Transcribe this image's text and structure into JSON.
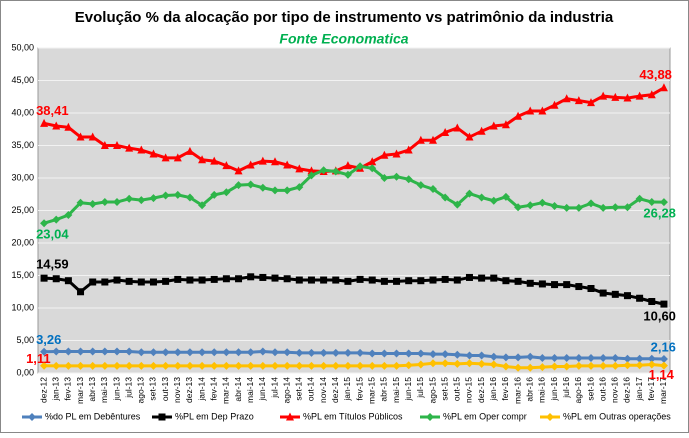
{
  "chart_data": {
    "type": "line",
    "title": "Evolução % da alocação por tipo de instrumento vs patrimônio da industria",
    "subtitle": "Fonte Economatica",
    "categories": [
      "dez-12",
      "jan-13",
      "fev-13",
      "mar-13",
      "abr-13",
      "mai-13",
      "jun-13",
      "jul-13",
      "ago-13",
      "set-13",
      "out-13",
      "nov-13",
      "dez-13",
      "jan-14",
      "fev-14",
      "mar-14",
      "abr-14",
      "mai-14",
      "jun-14",
      "jul-14",
      "ago-14",
      "set-14",
      "out-14",
      "nov-14",
      "dez-14",
      "jan-15",
      "fev-15",
      "mar-15",
      "abr-15",
      "mai-15",
      "jun-15",
      "jul-15",
      "ago-15",
      "set-15",
      "out-15",
      "nov-15",
      "dez-15",
      "jan-16",
      "fev-16",
      "mar-16",
      "abr-16",
      "mai-16",
      "jun-16",
      "jul-16",
      "ago-16",
      "set-16",
      "out-16",
      "nov-16",
      "dez-16",
      "jan-17",
      "fev-17",
      "mar-17"
    ],
    "ylim": [
      0,
      50
    ],
    "yticks": [
      {
        "value": 0,
        "label": "0,00"
      },
      {
        "value": 5,
        "label": "5,00"
      },
      {
        "value": 10,
        "label": "10,00"
      },
      {
        "value": 15,
        "label": "15,00"
      },
      {
        "value": 20,
        "label": "20,00"
      },
      {
        "value": 25,
        "label": "25,00"
      },
      {
        "value": 30,
        "label": "30,00"
      },
      {
        "value": 35,
        "label": "35,00"
      },
      {
        "value": 40,
        "label": "40,00"
      },
      {
        "value": 45,
        "label": "45,00"
      },
      {
        "value": 50,
        "label": "50,00"
      }
    ],
    "grid": true,
    "legend": "bottom",
    "series": [
      {
        "name": "%do PL em Debêntures",
        "color": "#4f81bd",
        "label_color": "#0070c0",
        "marker": "diamond",
        "values": [
          3.26,
          3.3,
          3.3,
          3.3,
          3.3,
          3.3,
          3.3,
          3.3,
          3.2,
          3.2,
          3.2,
          3.2,
          3.2,
          3.2,
          3.2,
          3.2,
          3.2,
          3.2,
          3.3,
          3.2,
          3.2,
          3.1,
          3.1,
          3.1,
          3.1,
          3.1,
          3.1,
          3.0,
          3.0,
          3.0,
          3.0,
          3.0,
          2.9,
          2.9,
          2.8,
          2.7,
          2.7,
          2.5,
          2.4,
          2.4,
          2.5,
          2.3,
          2.3,
          2.3,
          2.3,
          2.3,
          2.3,
          2.3,
          2.2,
          2.2,
          2.2,
          2.16
        ],
        "value_labels": [
          "3,26",
          null,
          null,
          null,
          null,
          null,
          null,
          null,
          null,
          null,
          null,
          null,
          null,
          null,
          null,
          null,
          null,
          null,
          null,
          null,
          null,
          null,
          null,
          null,
          null,
          null,
          null,
          null,
          null,
          null,
          null,
          null,
          null,
          null,
          null,
          null,
          null,
          null,
          null,
          null,
          null,
          null,
          null,
          null,
          null,
          null,
          null,
          null,
          null,
          null,
          null,
          "2,16"
        ]
      },
      {
        "name": "%PL em Dep Prazo",
        "color": "#000000",
        "label_color": "#000000",
        "marker": "square",
        "values": [
          14.59,
          14.5,
          14.2,
          12.5,
          14.0,
          14.0,
          14.3,
          14.1,
          14.0,
          14.0,
          14.1,
          14.4,
          14.3,
          14.3,
          14.4,
          14.5,
          14.5,
          14.8,
          14.7,
          14.6,
          14.5,
          14.3,
          14.3,
          14.3,
          14.3,
          14.1,
          14.4,
          14.3,
          14.1,
          14.1,
          14.2,
          14.2,
          14.3,
          14.4,
          14.3,
          14.7,
          14.6,
          14.6,
          14.2,
          14.1,
          13.8,
          13.7,
          13.6,
          13.6,
          13.3,
          13.0,
          12.3,
          12.1,
          11.9,
          11.5,
          11.0,
          10.6
        ],
        "value_labels": [
          "14,59",
          null,
          null,
          null,
          null,
          null,
          null,
          null,
          null,
          null,
          null,
          null,
          null,
          null,
          null,
          null,
          null,
          null,
          null,
          null,
          null,
          null,
          null,
          null,
          null,
          null,
          null,
          null,
          null,
          null,
          null,
          null,
          null,
          null,
          null,
          null,
          null,
          null,
          null,
          null,
          null,
          null,
          null,
          null,
          null,
          null,
          null,
          null,
          null,
          null,
          null,
          "10,60"
        ]
      },
      {
        "name": "%PL em Títulos Públicos",
        "color": "#ff0000",
        "label_color": "#ff0000",
        "marker": "triangle",
        "values": [
          38.41,
          38.0,
          37.8,
          36.3,
          36.3,
          35.0,
          35.0,
          34.6,
          34.3,
          33.7,
          33.1,
          33.1,
          34.1,
          32.8,
          32.6,
          31.9,
          31.1,
          32.0,
          32.6,
          32.5,
          32.0,
          31.4,
          31.1,
          31.0,
          31.1,
          31.9,
          31.5,
          32.5,
          33.5,
          33.7,
          34.3,
          35.8,
          35.8,
          37.0,
          37.7,
          36.3,
          37.2,
          38.0,
          38.2,
          39.5,
          40.3,
          40.3,
          41.2,
          42.2,
          41.9,
          41.6,
          42.6,
          42.4,
          42.3,
          42.6,
          42.8,
          43.88
        ],
        "value_labels": [
          "38,41",
          null,
          null,
          null,
          null,
          null,
          null,
          null,
          null,
          null,
          null,
          null,
          null,
          null,
          null,
          null,
          null,
          null,
          null,
          null,
          null,
          null,
          null,
          null,
          null,
          null,
          null,
          null,
          null,
          null,
          null,
          null,
          null,
          null,
          null,
          null,
          null,
          null,
          null,
          null,
          null,
          null,
          null,
          null,
          null,
          null,
          null,
          null,
          null,
          null,
          null,
          "43,88"
        ]
      },
      {
        "name": "%PL em Oper compr",
        "color": "#2eb54a",
        "label_color": "#00b050",
        "marker": "diamond",
        "values": [
          23.04,
          23.6,
          24.3,
          26.2,
          26.0,
          26.3,
          26.3,
          26.8,
          26.6,
          26.9,
          27.3,
          27.4,
          27.0,
          25.8,
          27.4,
          27.8,
          28.9,
          29.0,
          28.5,
          28.1,
          28.1,
          28.6,
          30.4,
          31.2,
          31.0,
          30.5,
          31.8,
          31.5,
          30.0,
          30.2,
          29.8,
          28.9,
          28.3,
          27.0,
          25.9,
          27.6,
          27.0,
          26.5,
          27.1,
          25.5,
          25.8,
          26.2,
          25.7,
          25.4,
          25.4,
          26.1,
          25.4,
          25.5,
          25.5,
          26.8,
          26.3,
          26.28
        ],
        "value_labels": [
          "23,04",
          null,
          null,
          null,
          null,
          null,
          null,
          null,
          null,
          null,
          null,
          null,
          null,
          null,
          null,
          null,
          null,
          null,
          null,
          null,
          null,
          null,
          null,
          null,
          null,
          null,
          null,
          null,
          null,
          null,
          null,
          null,
          null,
          null,
          null,
          null,
          null,
          null,
          null,
          null,
          null,
          null,
          null,
          null,
          null,
          null,
          null,
          null,
          null,
          null,
          null,
          "26,28"
        ]
      },
      {
        "name": "%PL em Outras operações",
        "color": "#ffc000",
        "label_color": "#ff0000",
        "marker": "diamond",
        "values": [
          1.11,
          1.1,
          1.1,
          1.1,
          1.1,
          1.1,
          1.1,
          1.1,
          1.1,
          1.1,
          1.1,
          1.1,
          1.1,
          1.1,
          1.1,
          1.1,
          1.1,
          1.1,
          1.1,
          1.1,
          1.1,
          1.1,
          1.1,
          1.1,
          1.1,
          1.1,
          1.1,
          1.1,
          1.1,
          1.1,
          1.2,
          1.3,
          1.5,
          1.5,
          1.4,
          1.5,
          1.4,
          1.3,
          1.0,
          0.8,
          0.8,
          0.9,
          1.0,
          1.0,
          1.1,
          1.1,
          1.1,
          1.1,
          1.2,
          1.2,
          1.3,
          1.14
        ],
        "value_labels": [
          "1,11",
          null,
          null,
          null,
          null,
          null,
          null,
          null,
          null,
          null,
          null,
          null,
          null,
          null,
          null,
          null,
          null,
          null,
          null,
          null,
          null,
          null,
          null,
          null,
          null,
          null,
          null,
          null,
          null,
          null,
          null,
          null,
          null,
          null,
          null,
          null,
          null,
          null,
          null,
          null,
          null,
          null,
          null,
          null,
          null,
          null,
          null,
          null,
          null,
          null,
          null,
          "1,14"
        ]
      }
    ]
  }
}
